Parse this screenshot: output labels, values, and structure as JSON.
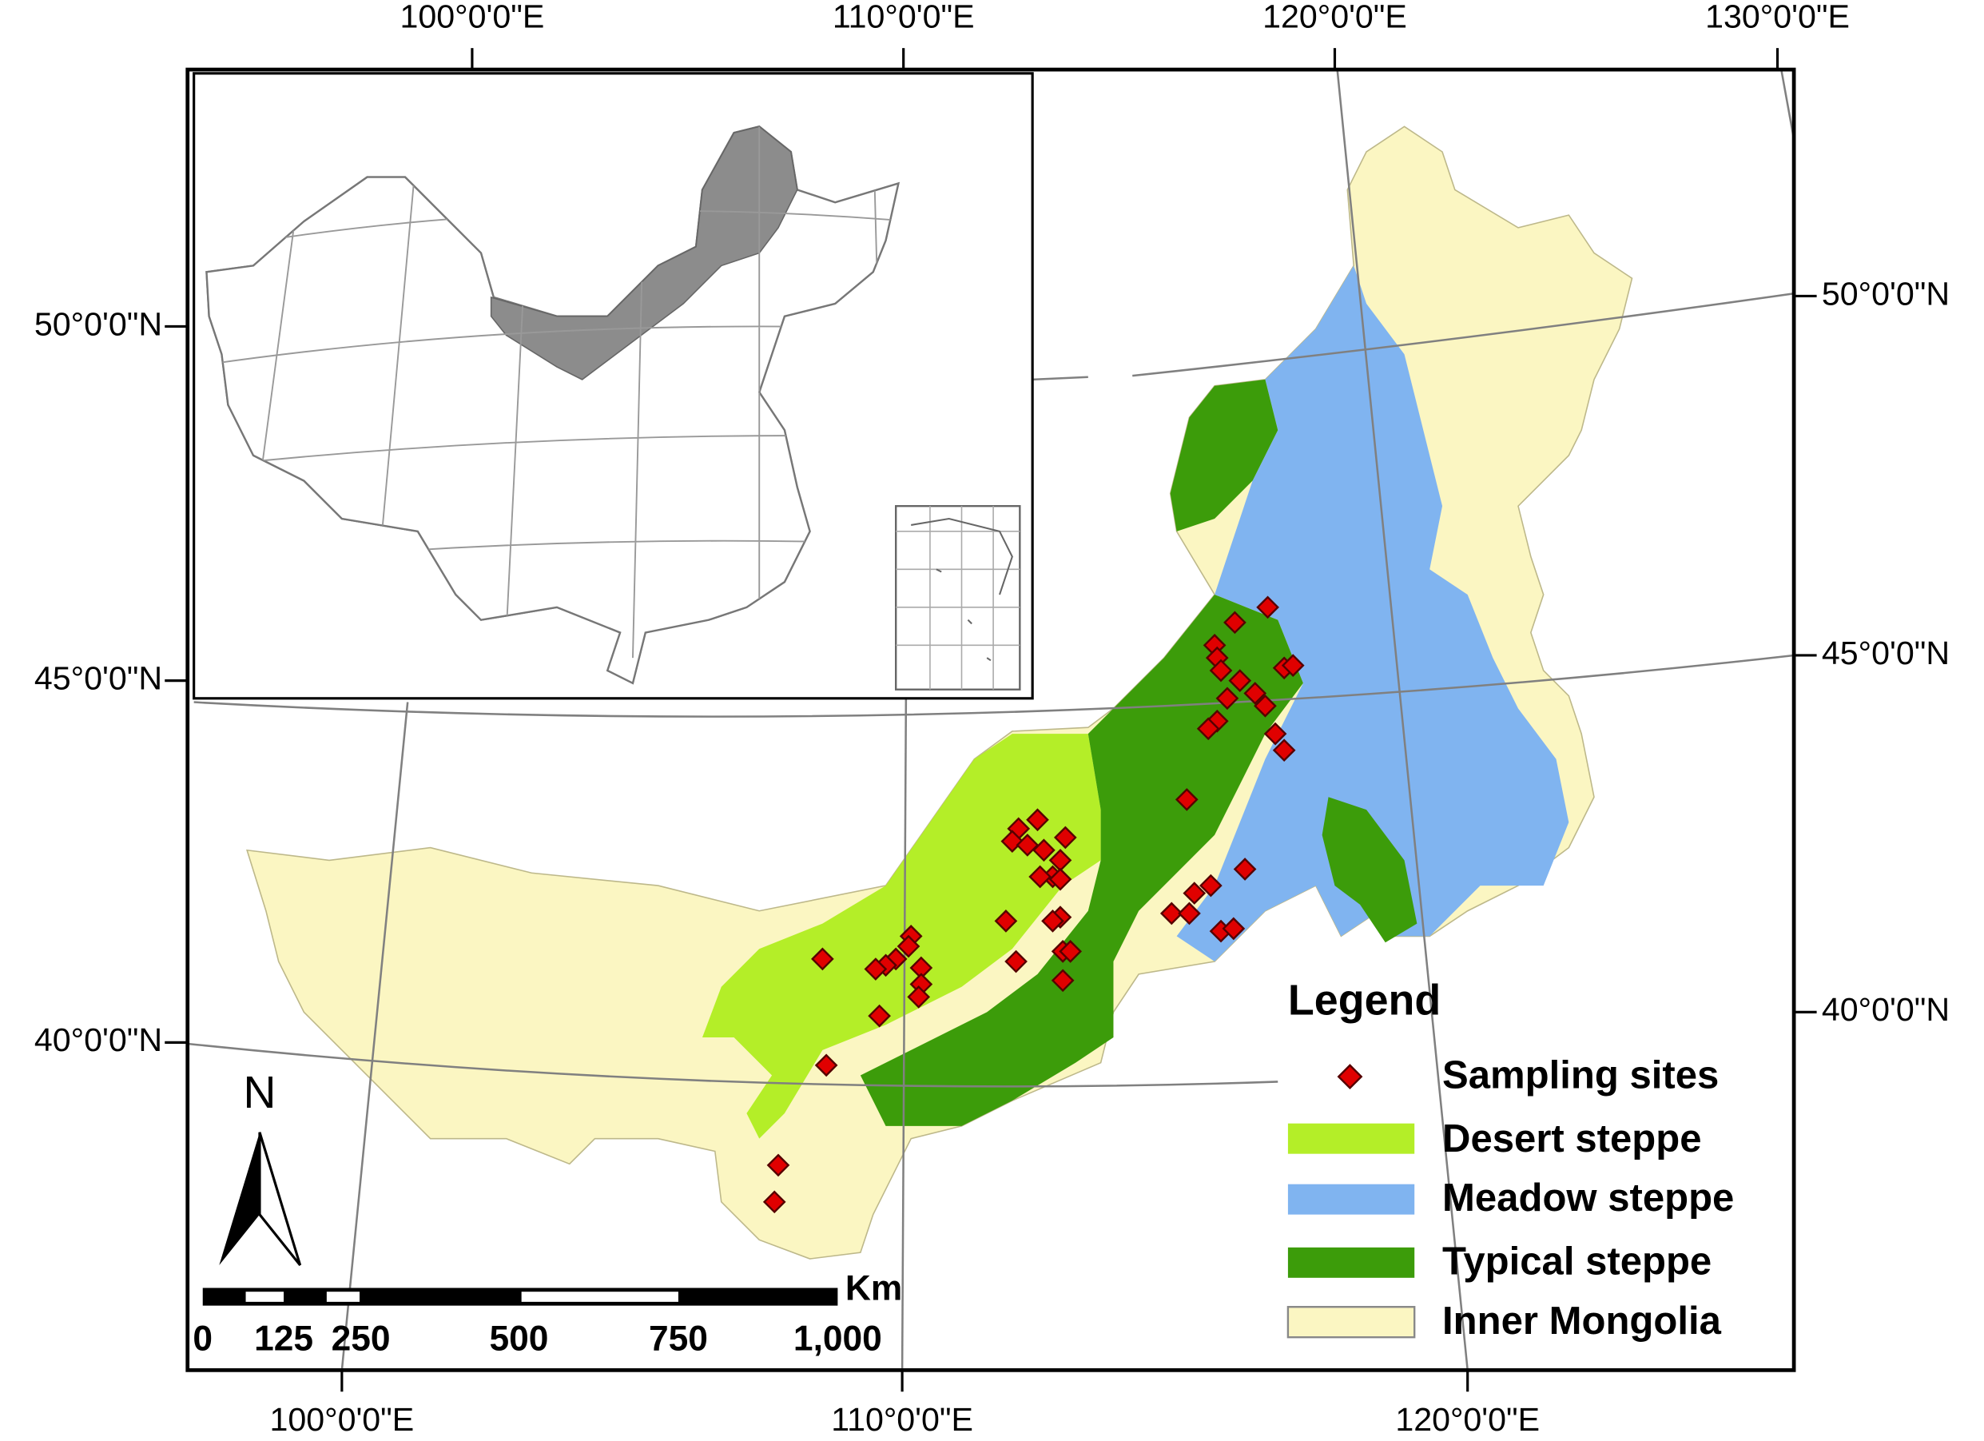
{
  "graticule": {
    "top": [
      "100°0'0\"E",
      "110°0'0\"E",
      "120°0'0\"E",
      "130°0'0\"E"
    ],
    "bottom": [
      "100°0'0\"E",
      "110°0'0\"E",
      "120°0'0\"E"
    ],
    "left": [
      "50°0'0\"N",
      "45°0'0\"N",
      "40°0'0\"N"
    ],
    "right": [
      "50°0'0\"N",
      "45°0'0\"N",
      "40°0'0\"N"
    ]
  },
  "legend": {
    "title": "Legend",
    "items": [
      "Sampling sites",
      "Desert steppe",
      "Meadow steppe",
      "Typical steppe",
      "Inner Mongolia"
    ]
  },
  "scale_bar": {
    "unit": "Km",
    "labels": [
      "0",
      "125",
      "250",
      "500",
      "750",
      "1,000"
    ]
  },
  "north_arrow": "N"
}
